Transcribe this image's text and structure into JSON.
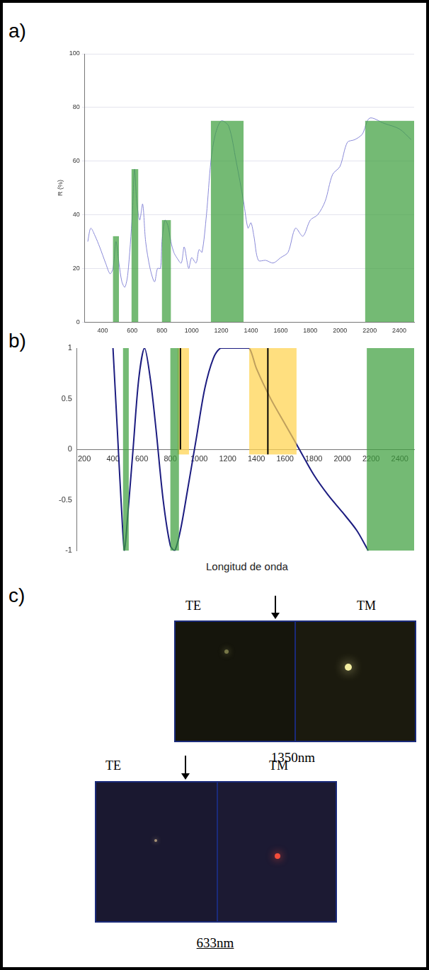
{
  "chart_data": [
    {
      "panel": "a)",
      "type": "line",
      "y_label": "R (%)",
      "x": [
        300,
        320,
        350,
        380,
        400,
        420,
        450,
        470,
        490,
        510,
        530,
        550,
        570,
        600,
        615,
        630,
        650,
        670,
        690,
        720,
        750,
        770,
        790,
        800,
        820,
        840,
        860,
        880,
        900,
        930,
        950,
        980,
        1000,
        1030,
        1050,
        1070,
        1100,
        1130,
        1160,
        1200,
        1250,
        1300,
        1350,
        1380,
        1400,
        1420,
        1450,
        1500,
        1550,
        1600,
        1650,
        1700,
        1750,
        1800,
        1850,
        1900,
        1950,
        2000,
        2050,
        2100,
        2150,
        2200,
        2300,
        2400,
        2480
      ],
      "values": [
        30,
        35,
        32,
        28,
        25,
        22,
        18,
        20,
        30,
        22,
        15,
        13,
        18,
        40,
        57,
        45,
        38,
        44,
        30,
        20,
        15,
        20,
        20,
        30,
        38,
        36,
        30,
        26,
        24,
        22,
        28,
        20,
        24,
        22,
        27,
        26,
        40,
        60,
        70,
        75,
        73,
        60,
        45,
        35,
        37,
        32,
        23,
        23,
        22,
        24,
        26,
        35,
        32,
        38,
        40,
        45,
        55,
        58,
        67,
        68,
        70,
        76,
        74,
        72,
        68
      ],
      "color": "#8a8ad8",
      "xlim": [
        280,
        2500
      ],
      "xticks": [
        400,
        600,
        800,
        1000,
        1200,
        1400,
        1600,
        1800,
        2000,
        2200,
        2400
      ],
      "ylim": [
        0,
        100
      ],
      "yticks": [
        0,
        20,
        40,
        60,
        80,
        100
      ],
      "grid": true,
      "bands": [
        {
          "x0": 470,
          "x1": 510,
          "y0": 0,
          "y1": 32,
          "color": "#3f9f3f"
        },
        {
          "x0": 595,
          "x1": 640,
          "y0": 0,
          "y1": 57,
          "color": "#3f9f3f"
        },
        {
          "x0": 800,
          "x1": 860,
          "y0": 0,
          "y1": 38,
          "color": "#3f9f3f"
        },
        {
          "x0": 1130,
          "x1": 1350,
          "y0": 0,
          "y1": 75,
          "color": "#3f9f3f"
        },
        {
          "x0": 2170,
          "x1": 2500,
          "y0": 0,
          "y1": 75,
          "color": "#3f9f3f"
        }
      ]
    },
    {
      "panel": "b)",
      "type": "line",
      "x_label": "Longitud de onda",
      "x": [
        400,
        430,
        460,
        480,
        500,
        540,
        580,
        620,
        660,
        700,
        750,
        800,
        830,
        870,
        920,
        980,
        1040,
        1100,
        1150,
        1200,
        1250,
        1300,
        1350,
        1400,
        1500,
        1600,
        1700,
        1800,
        1900,
        2000,
        2100,
        2180
      ],
      "values": [
        1,
        0.2,
        -0.6,
        -1,
        -0.7,
        0,
        0.7,
        1,
        0.7,
        0.2,
        -0.5,
        -0.95,
        -1,
        -0.8,
        -0.4,
        0.1,
        0.6,
        0.9,
        1,
        1,
        1,
        1,
        1,
        0.8,
        0.5,
        0.25,
        0,
        -0.25,
        -0.45,
        -0.62,
        -0.8,
        -1
      ],
      "color": "#1c1c80",
      "xlim": [
        150,
        2500
      ],
      "xticks": [
        200,
        400,
        600,
        800,
        1000,
        1200,
        1400,
        1600,
        1800,
        2000,
        2200,
        2400
      ],
      "ylim": [
        -1,
        1
      ],
      "yticks": [
        -1,
        -0.5,
        0,
        0.5,
        1
      ],
      "grid": false,
      "bands": [
        {
          "x0": 850,
          "x1": 930,
          "y0": -0.05,
          "y1": 1,
          "color": "#ffd24d"
        },
        {
          "x0": 1350,
          "x1": 1680,
          "y0": -0.05,
          "y1": 1,
          "color": "#ffd24d"
        },
        {
          "x0": 470,
          "x1": 510,
          "y0": -1,
          "y1": 1,
          "color": "#3f9f3f"
        },
        {
          "x0": 800,
          "x1": 860,
          "y0": -1,
          "y1": 1,
          "color": "#3f9f3f"
        },
        {
          "x0": 2170,
          "x1": 2500,
          "y0": -1,
          "y1": 1,
          "color": "#3f9f3f"
        }
      ],
      "vlines": [
        {
          "x": 870,
          "y0": 0,
          "y1": 1,
          "color": "#000000"
        },
        {
          "x": 1480,
          "y0": -0.05,
          "y1": 1,
          "color": "#000000"
        }
      ]
    }
  ],
  "panel_c": {
    "panel": "c)",
    "images": [
      {
        "left_label": "TE",
        "right_label": "TM",
        "caption": "1350nm"
      },
      {
        "left_label": "TE",
        "right_label": "TM",
        "caption": "633nm"
      }
    ]
  }
}
